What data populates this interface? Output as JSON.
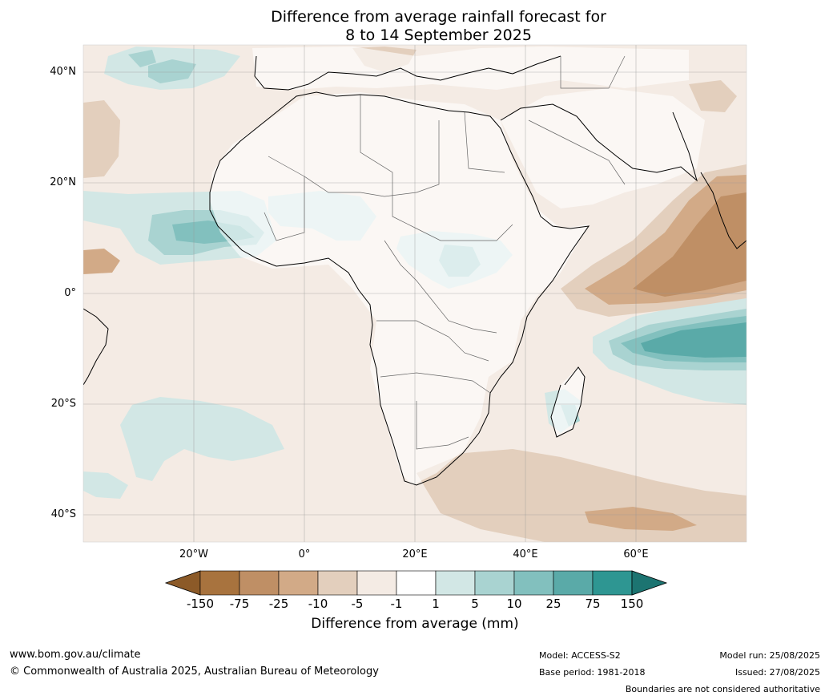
{
  "title": {
    "line1": "Difference from average rainfall forecast for",
    "line2": "8 to 14 September 2025"
  },
  "map": {
    "lat_labels": [
      "40°N",
      "20°N",
      "0°",
      "20°S",
      "40°S"
    ],
    "lat_values": [
      40,
      20,
      0,
      -20,
      -40
    ],
    "lon_labels": [
      "20°W",
      "0°",
      "20°E",
      "40°E",
      "60°E"
    ],
    "lon_values": [
      -20,
      0,
      20,
      40,
      60
    ],
    "extent": {
      "lon_min": -40,
      "lon_max": 80,
      "lat_min": -45,
      "lat_max": 45
    }
  },
  "colorbar": {
    "labels": [
      "-150",
      "-75",
      "-25",
      "-10",
      "-5",
      "-1",
      "1",
      "5",
      "10",
      "25",
      "75",
      "150"
    ],
    "colors": [
      "#8c5a28",
      "#a8733e",
      "#bf8f65",
      "#d2aa87",
      "#e3cfbd",
      "#f4ebe4",
      "#ffffff",
      "#d2e7e5",
      "#a9d3d1",
      "#82c0be",
      "#5aaaa8",
      "#2e9692",
      "#1c7471"
    ],
    "title": "Difference from average (mm)"
  },
  "footer": {
    "website": "www.bom.gov.au/climate",
    "copyright": "© Commonwealth of Australia 2025, Australian Bureau of Meteorology",
    "model": "Model: ACCESS-S2",
    "base_period": "Base period: 1981-2018",
    "model_run": "Model run: 25/08/2025",
    "issued": "Issued: 27/08/2025",
    "disclaimer": "Boundaries are not considered authoritative"
  }
}
